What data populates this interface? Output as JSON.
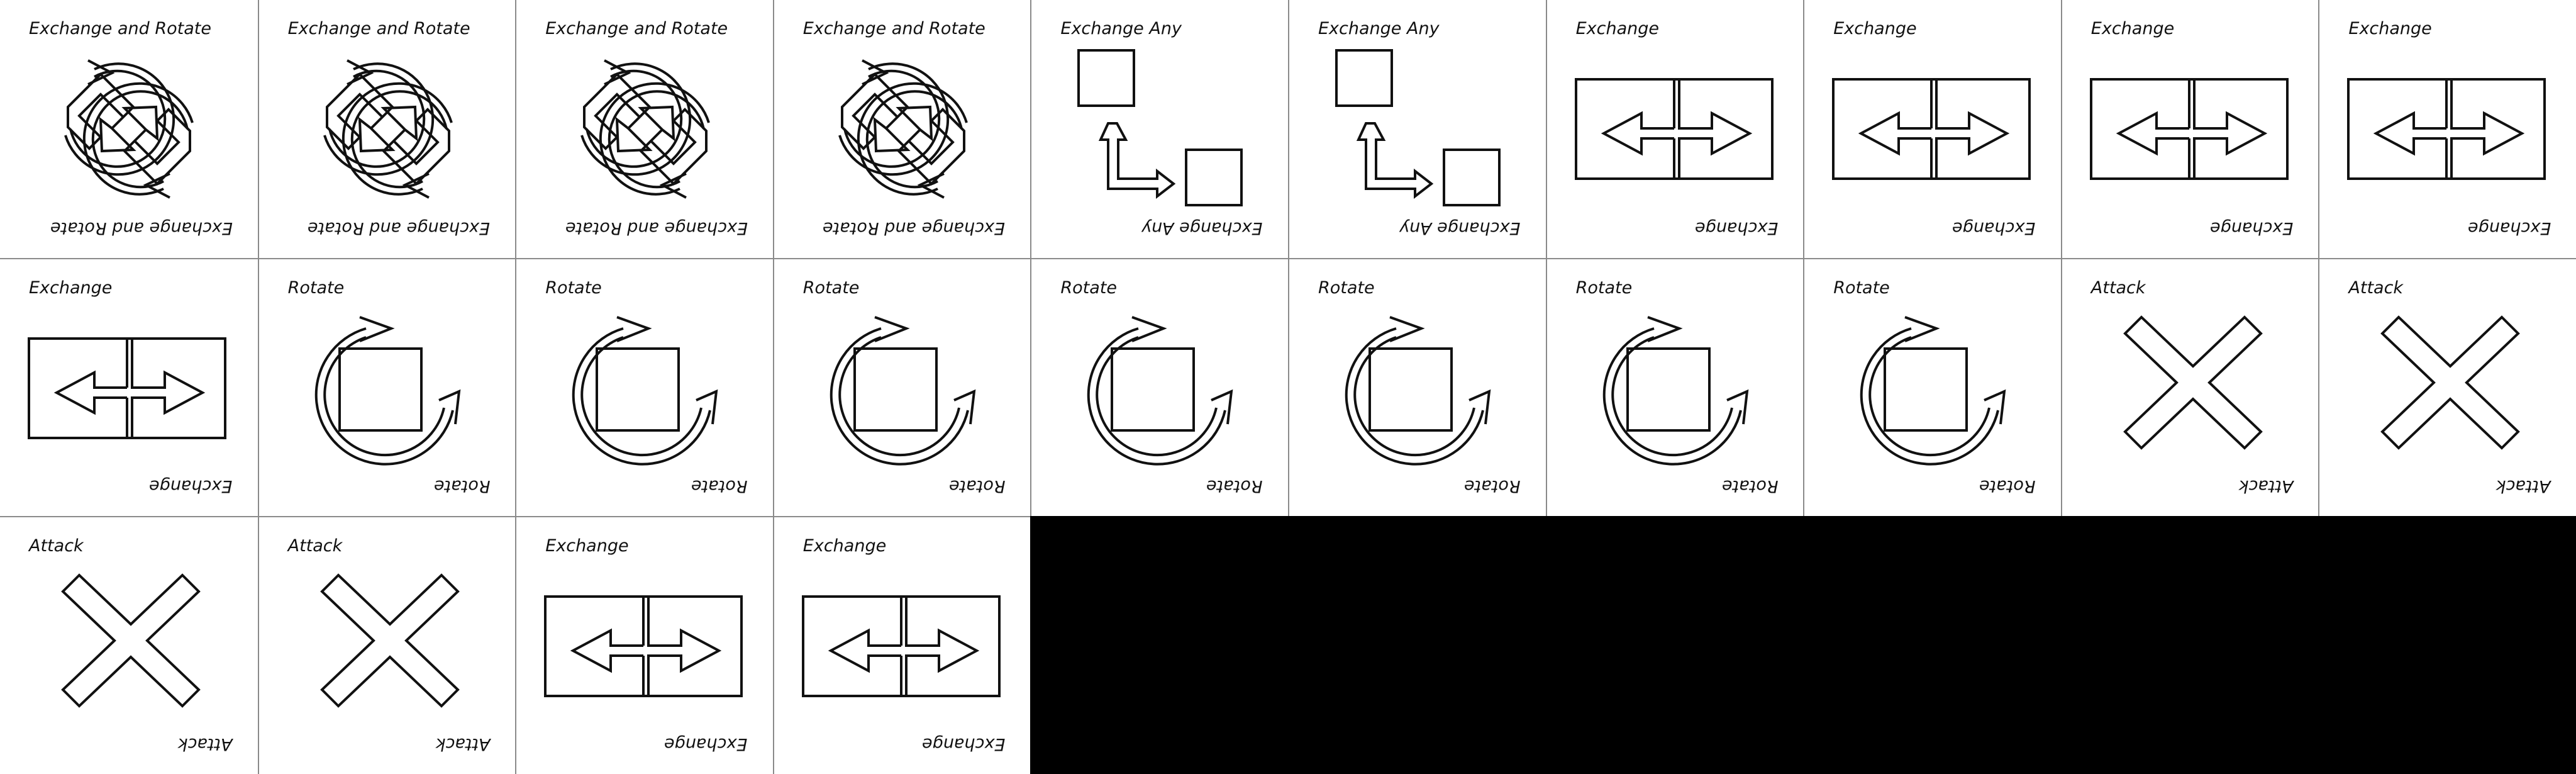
{
  "colors": {
    "ink": "#111111",
    "card": "#ffffff",
    "background": "#000000",
    "divider": "#8a8a8a"
  },
  "cards": [
    {
      "label": "Exchange and Rotate",
      "icon": "exchange-and-rotate-icon"
    },
    {
      "label": "Exchange and Rotate",
      "icon": "exchange-and-rotate-icon"
    },
    {
      "label": "Exchange and Rotate",
      "icon": "exchange-and-rotate-icon"
    },
    {
      "label": "Exchange and Rotate",
      "icon": "exchange-and-rotate-icon"
    },
    {
      "label": "Exchange Any",
      "icon": "exchange-any-icon"
    },
    {
      "label": "Exchange Any",
      "icon": "exchange-any-icon"
    },
    {
      "label": "Exchange",
      "icon": "exchange-icon"
    },
    {
      "label": "Exchange",
      "icon": "exchange-icon"
    },
    {
      "label": "Exchange",
      "icon": "exchange-icon"
    },
    {
      "label": "Exchange",
      "icon": "exchange-icon"
    },
    {
      "label": "Exchange",
      "icon": "exchange-icon"
    },
    {
      "label": "Rotate",
      "icon": "rotate-icon"
    },
    {
      "label": "Rotate",
      "icon": "rotate-icon"
    },
    {
      "label": "Rotate",
      "icon": "rotate-icon"
    },
    {
      "label": "Rotate",
      "icon": "rotate-icon"
    },
    {
      "label": "Rotate",
      "icon": "rotate-icon"
    },
    {
      "label": "Rotate",
      "icon": "rotate-icon"
    },
    {
      "label": "Rotate",
      "icon": "rotate-icon"
    },
    {
      "label": "Attack",
      "icon": "attack-icon"
    },
    {
      "label": "Attack",
      "icon": "attack-icon"
    },
    {
      "label": "Attack",
      "icon": "attack-icon"
    },
    {
      "label": "Attack",
      "icon": "attack-icon"
    },
    {
      "label": "Exchange",
      "icon": "exchange-icon"
    },
    {
      "label": "Exchange",
      "icon": "exchange-icon"
    }
  ]
}
